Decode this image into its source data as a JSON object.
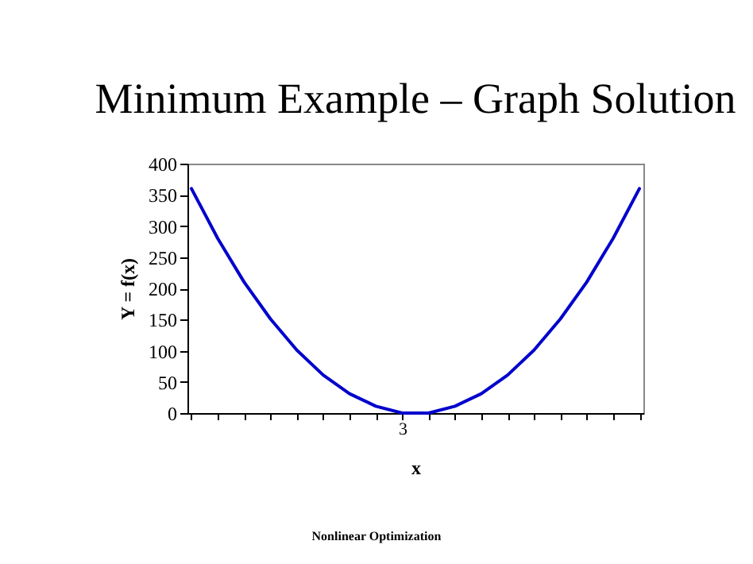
{
  "chart_data": {
    "type": "line",
    "title": "Minimum Example – Graph Solution",
    "xlabel": "x",
    "ylabel": "Y = f(x)",
    "categories": [
      null,
      null,
      null,
      null,
      null,
      null,
      null,
      null,
      "3",
      null,
      null,
      null,
      null,
      null,
      null,
      null,
      null,
      null
    ],
    "series": [
      {
        "color": "#0000cc",
        "values": [
          360,
          280,
          210,
          151,
          101,
          61,
          31,
          11,
          0,
          0,
          11,
          31,
          61,
          101,
          151,
          210,
          280,
          360
        ]
      }
    ],
    "ylim": [
      0,
      400
    ],
    "yticks": [
      0,
      50,
      100,
      150,
      200,
      250,
      300,
      350,
      400
    ],
    "grid": false,
    "legend": false,
    "marker": "none",
    "line_style": "solid",
    "annotations": [
      "Nonlinear Optimization"
    ]
  }
}
